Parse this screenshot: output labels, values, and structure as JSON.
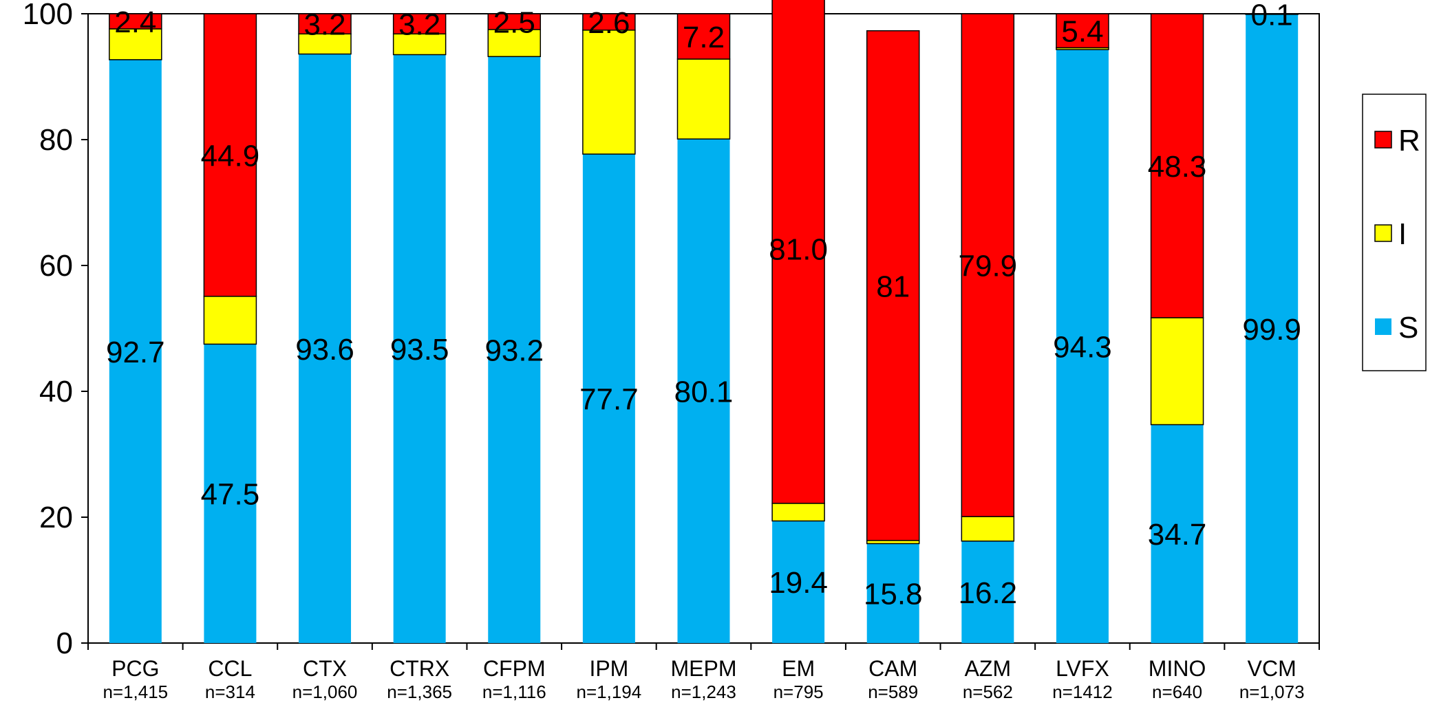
{
  "chart_data": {
    "type": "bar",
    "stacked": true,
    "categories": [
      "PCG",
      "CCL",
      "CTX",
      "CTRX",
      "CFPM",
      "IPM",
      "MEPM",
      "EM",
      "CAM",
      "AZM",
      "LVFX",
      "MINO",
      "VCM"
    ],
    "sample_sizes": [
      "n=1,415",
      "n=314",
      "n=1,060",
      "n=1,365",
      "n=1,116",
      "n=1,194",
      "n=1,243",
      "n=795",
      "n=589",
      "n=562",
      "n=1412",
      "n=640",
      "n=1,073"
    ],
    "series": [
      {
        "name": "S",
        "color": "#00b0f0",
        "values": [
          92.7,
          47.5,
          93.6,
          93.5,
          93.2,
          77.7,
          80.1,
          19.4,
          15.8,
          16.2,
          94.3,
          34.7,
          99.9
        ],
        "labels": [
          "92.7",
          "47.5",
          "93.6",
          "93.5",
          "93.2",
          "77.7",
          "80.1",
          "19.4",
          "15.8",
          "16.2",
          "94.3",
          "34.7",
          "99.9"
        ]
      },
      {
        "name": "I",
        "color": "#ffff00",
        "values": [
          4.9,
          7.6,
          3.2,
          3.3,
          4.3,
          19.7,
          12.7,
          2.8,
          0.5,
          3.9,
          0.3,
          17.0,
          0.0
        ],
        "labels": [
          "",
          "",
          "",
          "",
          "",
          "",
          "",
          "",
          "",
          "",
          "",
          "",
          ""
        ]
      },
      {
        "name": "R",
        "color": "#ff0000",
        "values": [
          2.4,
          44.9,
          3.2,
          3.2,
          2.5,
          2.6,
          7.2,
          81.0,
          81,
          79.9,
          5.4,
          48.3,
          0.1
        ],
        "labels": [
          "2.4",
          "44.9",
          "3.2",
          "3.2",
          "2.5",
          "2.6",
          "7.2",
          "81.0",
          "81",
          "79.9",
          "5.4",
          "48.3",
          "0.1"
        ]
      }
    ],
    "legend_order": [
      "R",
      "I",
      "S"
    ],
    "ylim": [
      0,
      100
    ],
    "yticks": [
      0,
      20,
      40,
      60,
      80,
      100
    ],
    "grid": false,
    "legend_position": "right"
  }
}
